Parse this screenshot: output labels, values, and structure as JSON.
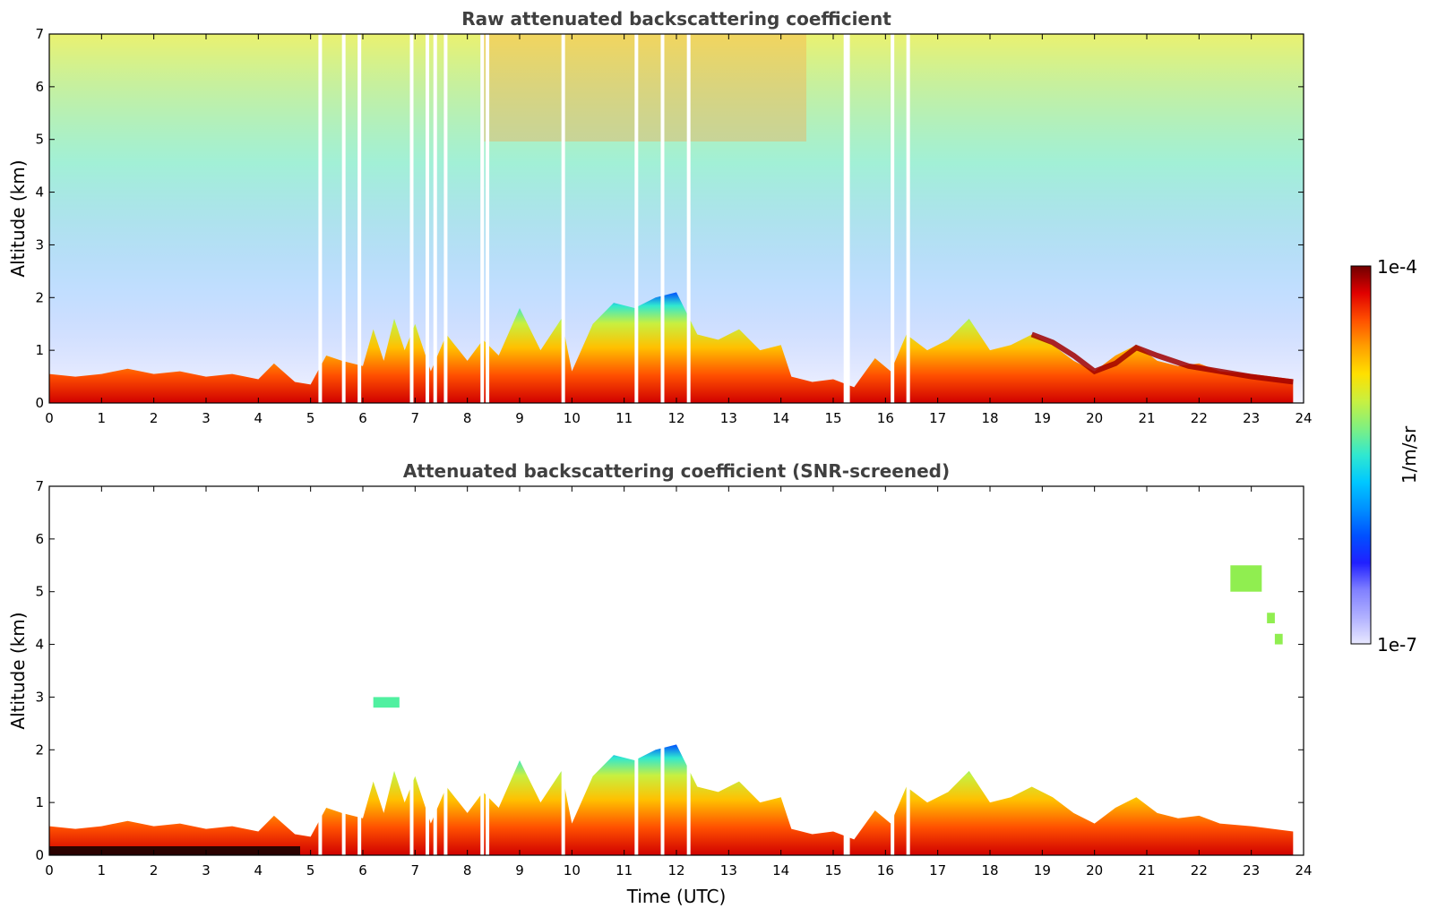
{
  "chart_data": [
    {
      "type": "heatmap",
      "title": "Raw attenuated backscattering coefficient",
      "xlabel": "",
      "ylabel": "Altitude (km)",
      "xlim": [
        0,
        24
      ],
      "ylim": [
        0,
        7
      ],
      "x_ticks": [
        "0",
        "1",
        "2",
        "3",
        "4",
        "5",
        "6",
        "7",
        "8",
        "9",
        "10",
        "11",
        "12",
        "13",
        "14",
        "15",
        "16",
        "17",
        "18",
        "19",
        "20",
        "21",
        "22",
        "23",
        "24"
      ],
      "y_ticks": [
        "0",
        "1",
        "2",
        "3",
        "4",
        "5",
        "6",
        "7"
      ],
      "noise_fill": true,
      "gaps_utc": [
        5.15,
        5.6,
        5.9,
        6.9,
        7.2,
        7.35,
        7.55,
        8.25,
        8.35,
        9.8,
        11.2,
        11.7,
        12.2,
        15.2,
        15.25,
        16.1,
        16.4
      ],
      "boundary_layer_top_km": [
        [
          0,
          0.55
        ],
        [
          0.5,
          0.5
        ],
        [
          1,
          0.55
        ],
        [
          1.5,
          0.65
        ],
        [
          2,
          0.55
        ],
        [
          2.5,
          0.6
        ],
        [
          3,
          0.5
        ],
        [
          3.5,
          0.55
        ],
        [
          4,
          0.45
        ],
        [
          4.3,
          0.75
        ],
        [
          4.7,
          0.4
        ],
        [
          5,
          0.35
        ],
        [
          5.3,
          0.9
        ],
        [
          5.6,
          0.8
        ],
        [
          6,
          0.7
        ],
        [
          6.2,
          1.4
        ],
        [
          6.4,
          0.8
        ],
        [
          6.6,
          1.6
        ],
        [
          6.8,
          1.0
        ],
        [
          7,
          1.5
        ],
        [
          7.3,
          0.6
        ],
        [
          7.6,
          1.3
        ],
        [
          8,
          0.8
        ],
        [
          8.3,
          1.2
        ],
        [
          8.6,
          0.9
        ],
        [
          9,
          1.8
        ],
        [
          9.4,
          1.0
        ],
        [
          9.8,
          1.6
        ],
        [
          10,
          0.6
        ],
        [
          10.4,
          1.5
        ],
        [
          10.8,
          1.9
        ],
        [
          11.2,
          1.8
        ],
        [
          11.6,
          2.0
        ],
        [
          12,
          2.1
        ],
        [
          12.4,
          1.3
        ],
        [
          12.8,
          1.2
        ],
        [
          13.2,
          1.4
        ],
        [
          13.6,
          1.0
        ],
        [
          14,
          1.1
        ],
        [
          14.2,
          0.5
        ],
        [
          14.6,
          0.4
        ],
        [
          15,
          0.45
        ],
        [
          15.4,
          0.3
        ],
        [
          15.8,
          0.85
        ],
        [
          16.1,
          0.6
        ],
        [
          16.4,
          1.3
        ],
        [
          16.8,
          1.0
        ],
        [
          17.2,
          1.2
        ],
        [
          17.6,
          1.6
        ],
        [
          18,
          1.0
        ],
        [
          18.4,
          1.1
        ],
        [
          18.8,
          1.3
        ],
        [
          19.2,
          1.1
        ],
        [
          19.6,
          0.8
        ],
        [
          20,
          0.6
        ],
        [
          20.4,
          0.9
        ],
        [
          20.8,
          1.1
        ],
        [
          21.2,
          0.8
        ],
        [
          21.6,
          0.7
        ],
        [
          22,
          0.75
        ],
        [
          22.4,
          0.6
        ],
        [
          23,
          0.55
        ],
        [
          23.8,
          0.45
        ]
      ],
      "elevated_layer_km": [
        [
          18.8,
          1.3
        ],
        [
          19.2,
          1.15
        ],
        [
          19.6,
          0.9
        ],
        [
          20,
          0.6
        ],
        [
          20.4,
          0.75
        ],
        [
          20.8,
          1.05
        ],
        [
          21.2,
          0.9
        ],
        [
          21.8,
          0.7
        ],
        [
          22.4,
          0.6
        ],
        [
          23.0,
          0.5
        ],
        [
          23.8,
          0.4
        ]
      ]
    },
    {
      "type": "heatmap",
      "title": "Attenuated backscattering coefficient (SNR-screened)",
      "xlabel": "Time (UTC)",
      "ylabel": "Altitude (km)",
      "xlim": [
        0,
        24
      ],
      "ylim": [
        0,
        7
      ],
      "x_ticks": [
        "0",
        "1",
        "2",
        "3",
        "4",
        "5",
        "6",
        "7",
        "8",
        "9",
        "10",
        "11",
        "12",
        "13",
        "14",
        "15",
        "16",
        "17",
        "18",
        "19",
        "20",
        "21",
        "22",
        "23",
        "24"
      ],
      "y_ticks": [
        "0",
        "1",
        "2",
        "3",
        "4",
        "5",
        "6",
        "7"
      ],
      "noise_fill": false,
      "cloud_patches": [
        {
          "x": [
            6.2,
            6.7
          ],
          "y": [
            2.8,
            3.0
          ],
          "color": "#50f0a0"
        },
        {
          "x": [
            22.6,
            23.2
          ],
          "y": [
            5.0,
            5.5
          ],
          "color": "#90ee50"
        },
        {
          "x": [
            23.3,
            23.45
          ],
          "y": [
            4.4,
            4.6
          ],
          "color": "#90ee50"
        },
        {
          "x": [
            23.45,
            23.6
          ],
          "y": [
            4.0,
            4.2
          ],
          "color": "#90ee50"
        }
      ]
    }
  ],
  "colorbar": {
    "label": "1/m/sr",
    "max_label": "1e-4",
    "min_label": "1e-7",
    "scale": "log",
    "range": [
      1e-07,
      0.0001
    ],
    "colors": [
      "#e8e8ff",
      "#b0b0ff",
      "#8080ff",
      "#2020ff",
      "#0050ff",
      "#0090ff",
      "#00c8ff",
      "#30e8d0",
      "#80f080",
      "#c8f040",
      "#ffe000",
      "#ffa000",
      "#ff5000",
      "#e00000",
      "#700000"
    ]
  }
}
